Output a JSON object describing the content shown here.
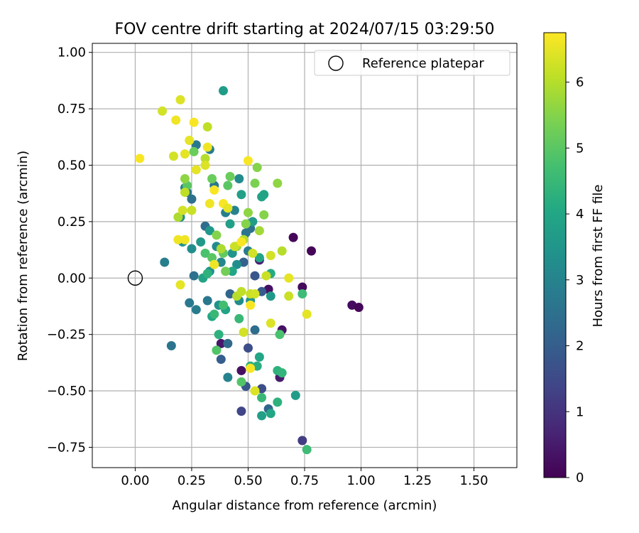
{
  "chart_data": {
    "type": "scatter",
    "title": "FOV centre drift starting at 2024/07/15 03:29:50",
    "xlabel": "Angular distance from reference (arcmin)",
    "ylabel": "Rotation from reference (arcmin)",
    "xlim": [
      -0.19,
      1.69
    ],
    "ylim": [
      -0.84,
      1.04
    ],
    "xticks": [
      0.0,
      0.25,
      0.5,
      0.75,
      1.0,
      1.25,
      1.5
    ],
    "xtick_labels": [
      "0.00",
      "0.25",
      "0.50",
      "0.75",
      "1.00",
      "1.25",
      "1.50"
    ],
    "yticks": [
      -0.75,
      -0.5,
      -0.25,
      0.0,
      0.25,
      0.5,
      0.75,
      1.0
    ],
    "ytick_labels": [
      "−0.75",
      "−0.50",
      "−0.25",
      "0.00",
      "0.25",
      "0.50",
      "0.75",
      "1.00"
    ],
    "grid": true,
    "legend": {
      "placement": "top-right",
      "entries": [
        "Reference platepar"
      ]
    },
    "reference_point": {
      "x": 0.0,
      "y": 0.0,
      "label": "Reference platepar"
    },
    "colorbar": {
      "label": "Hours from first FF file",
      "colormap": "viridis",
      "range": [
        0,
        6.75
      ],
      "ticks": [
        0,
        1,
        2,
        3,
        4,
        5,
        6
      ],
      "tick_labels": [
        "0",
        "1",
        "2",
        "3",
        "4",
        "5",
        "6"
      ]
    },
    "series": [
      {
        "points": [
          [
            0.7,
            0.18,
            0.1
          ],
          [
            0.78,
            0.12,
            0.1
          ],
          [
            0.74,
            -0.04,
            0.2
          ],
          [
            0.59,
            -0.05,
            0.3
          ],
          [
            0.96,
            -0.12,
            0.2
          ],
          [
            0.99,
            -0.13,
            0.1
          ],
          [
            0.65,
            -0.23,
            0.3
          ],
          [
            0.38,
            -0.29,
            0.4
          ],
          [
            0.47,
            -0.41,
            0.3
          ],
          [
            0.64,
            -0.44,
            0.5
          ],
          [
            0.55,
            0.08,
            0.6
          ],
          [
            0.74,
            -0.72,
            1.2
          ],
          [
            0.47,
            -0.59,
            1.4
          ],
          [
            0.5,
            -0.31,
            1.6
          ],
          [
            0.56,
            -0.49,
            1.6
          ],
          [
            0.49,
            -0.48,
            1.8
          ],
          [
            0.59,
            -0.58,
            2.2
          ],
          [
            0.53,
            0.01,
            1.8
          ],
          [
            0.48,
            0.07,
            2.1
          ],
          [
            0.53,
            -0.23,
            2.4
          ],
          [
            0.38,
            -0.36,
            2.0
          ],
          [
            0.41,
            -0.29,
            2.3
          ],
          [
            0.56,
            -0.06,
            1.9
          ],
          [
            0.42,
            -0.07,
            2.2
          ],
          [
            0.26,
            0.01,
            2.5
          ],
          [
            0.16,
            -0.3,
            2.6
          ],
          [
            0.24,
            -0.11,
            2.7
          ],
          [
            0.27,
            -0.14,
            2.8
          ],
          [
            0.32,
            -0.1,
            2.7
          ],
          [
            0.41,
            -0.44,
            3.0
          ],
          [
            0.13,
            0.07,
            2.9
          ],
          [
            0.22,
            0.4,
            2.9
          ],
          [
            0.23,
            0.38,
            2.6
          ],
          [
            0.25,
            0.35,
            2.5
          ],
          [
            0.27,
            0.59,
            2.7
          ],
          [
            0.33,
            0.57,
            2.8
          ],
          [
            0.31,
            0.23,
            2.4
          ],
          [
            0.35,
            0.41,
            2.7
          ],
          [
            0.4,
            0.29,
            2.9
          ],
          [
            0.44,
            0.3,
            3.0
          ],
          [
            0.46,
            0.44,
            3.2
          ],
          [
            0.51,
            0.22,
            2.5
          ],
          [
            0.5,
            0.12,
            2.8
          ],
          [
            0.49,
            0.2,
            2.6
          ],
          [
            0.45,
            0.06,
            3.3
          ],
          [
            0.38,
            0.07,
            3.1
          ],
          [
            0.33,
            0.03,
            3.4
          ],
          [
            0.37,
            -0.12,
            3.4
          ],
          [
            0.46,
            -0.1,
            3.2
          ],
          [
            0.51,
            -0.1,
            3.5
          ],
          [
            0.6,
            -0.08,
            3.6
          ],
          [
            0.39,
            0.83,
            3.7
          ],
          [
            0.2,
            0.27,
            3.3
          ],
          [
            0.21,
            0.16,
            3.4
          ],
          [
            0.25,
            0.13,
            3.3
          ],
          [
            0.29,
            0.16,
            3.6
          ],
          [
            0.33,
            0.21,
            3.6
          ],
          [
            0.36,
            0.14,
            3.2
          ],
          [
            0.43,
            0.11,
            3.5
          ],
          [
            0.47,
            0.37,
            3.8
          ],
          [
            0.56,
            0.36,
            3.9
          ],
          [
            0.57,
            0.37,
            3.9
          ],
          [
            0.52,
            0.25,
            3.7
          ],
          [
            0.42,
            0.24,
            3.8
          ],
          [
            0.43,
            0.03,
            4.0
          ],
          [
            0.3,
            0.0,
            3.9
          ],
          [
            0.34,
            -0.17,
            4.0
          ],
          [
            0.4,
            -0.14,
            3.9
          ],
          [
            0.55,
            0.09,
            4.0
          ],
          [
            0.6,
            0.02,
            4.1
          ],
          [
            0.71,
            -0.52,
            3.7
          ],
          [
            0.6,
            -0.6,
            4.0
          ],
          [
            0.56,
            -0.61,
            3.8
          ],
          [
            0.63,
            -0.41,
            4.3
          ],
          [
            0.65,
            -0.42,
            4.4
          ],
          [
            0.63,
            -0.55,
            4.3
          ],
          [
            0.55,
            -0.35,
            4.0
          ],
          [
            0.54,
            -0.39,
            4.2
          ],
          [
            0.51,
            -0.39,
            4.3
          ],
          [
            0.37,
            -0.25,
            4.3
          ],
          [
            0.46,
            -0.18,
            4.5
          ],
          [
            0.56,
            -0.53,
            4.5
          ],
          [
            0.74,
            -0.07,
            4.6
          ],
          [
            0.64,
            -0.25,
            4.8
          ],
          [
            0.35,
            -0.16,
            4.5
          ],
          [
            0.39,
            -0.12,
            4.7
          ],
          [
            0.36,
            -0.32,
            4.9
          ],
          [
            0.47,
            -0.46,
            4.9
          ],
          [
            0.76,
            -0.76,
            4.6
          ],
          [
            0.32,
            0.02,
            4.3
          ],
          [
            0.31,
            0.11,
            4.8
          ],
          [
            0.34,
            0.09,
            5.0
          ],
          [
            0.39,
            0.11,
            5.1
          ],
          [
            0.41,
            0.41,
            5.0
          ],
          [
            0.42,
            0.45,
            5.2
          ],
          [
            0.34,
            0.44,
            5.2
          ],
          [
            0.23,
            0.41,
            5.0
          ],
          [
            0.26,
            0.56,
            5.2
          ],
          [
            0.22,
            0.44,
            5.6
          ],
          [
            0.54,
            0.49,
            5.5
          ],
          [
            0.53,
            0.42,
            5.4
          ],
          [
            0.63,
            0.42,
            5.6
          ],
          [
            0.57,
            0.28,
            5.5
          ],
          [
            0.5,
            0.29,
            5.6
          ],
          [
            0.55,
            0.21,
            5.8
          ],
          [
            0.49,
            0.24,
            5.5
          ],
          [
            0.45,
            0.14,
            5.8
          ],
          [
            0.38,
            0.13,
            5.9
          ],
          [
            0.4,
            0.03,
            5.3
          ],
          [
            0.36,
            0.19,
            5.5
          ],
          [
            0.31,
            0.53,
            6.0
          ],
          [
            0.32,
            0.67,
            6.1
          ],
          [
            0.19,
            0.27,
            5.9
          ],
          [
            0.22,
            0.38,
            6.1
          ],
          [
            0.25,
            0.3,
            6.2
          ],
          [
            0.21,
            0.3,
            6.3
          ],
          [
            0.48,
            0.17,
            6.0
          ],
          [
            0.44,
            0.14,
            6.2
          ],
          [
            0.52,
            0.11,
            6.3
          ],
          [
            0.51,
            -0.07,
            6.2
          ],
          [
            0.45,
            -0.08,
            6.0
          ],
          [
            0.47,
            -0.06,
            6.1
          ],
          [
            0.53,
            -0.07,
            6.3
          ],
          [
            0.48,
            -0.24,
            6.3
          ],
          [
            0.6,
            -0.2,
            6.4
          ],
          [
            0.58,
            0.01,
            6.2
          ],
          [
            0.65,
            0.12,
            6.0
          ],
          [
            0.6,
            0.1,
            6.3
          ],
          [
            0.68,
            -0.08,
            6.2
          ],
          [
            0.53,
            -0.5,
            6.4
          ],
          [
            0.12,
            0.74,
            6.3
          ],
          [
            0.2,
            0.79,
            6.4
          ],
          [
            0.17,
            0.54,
            6.3
          ],
          [
            0.22,
            0.55,
            6.5
          ],
          [
            0.31,
            0.5,
            6.4
          ],
          [
            0.32,
            0.58,
            6.6
          ],
          [
            0.24,
            0.61,
            6.5
          ],
          [
            0.27,
            0.48,
            6.5
          ],
          [
            0.18,
            0.7,
            6.6
          ],
          [
            0.26,
            0.69,
            6.7
          ],
          [
            0.02,
            0.53,
            6.7
          ],
          [
            0.5,
            0.52,
            6.7
          ],
          [
            0.33,
            0.33,
            6.6
          ],
          [
            0.39,
            0.33,
            6.7
          ],
          [
            0.41,
            0.31,
            6.5
          ],
          [
            0.35,
            0.39,
            6.7
          ],
          [
            0.19,
            0.17,
            6.6
          ],
          [
            0.2,
            -0.03,
            6.5
          ],
          [
            0.22,
            0.17,
            6.6
          ],
          [
            0.35,
            0.06,
            6.6
          ],
          [
            0.47,
            0.16,
            6.7
          ],
          [
            0.51,
            -0.12,
            6.7
          ],
          [
            0.51,
            -0.4,
            6.7
          ],
          [
            0.68,
            0.0,
            6.5
          ],
          [
            0.76,
            -0.16,
            6.5
          ]
        ]
      }
    ]
  }
}
